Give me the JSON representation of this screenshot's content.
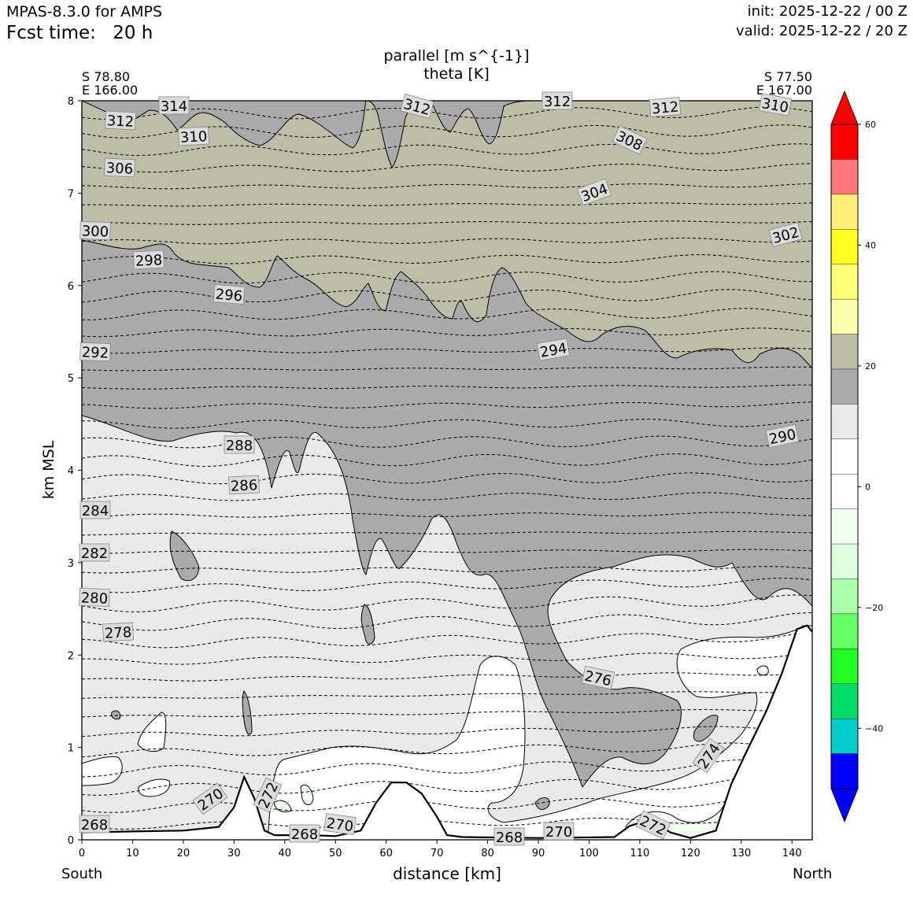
{
  "header": {
    "model": "MPAS-8.3.0 for AMPS",
    "fcst_label": "Fcst time:",
    "fcst_value": "20 h",
    "init": "init: 2025-12-22 / 00 Z",
    "valid": "valid: 2025-12-22 / 20 Z"
  },
  "chart_data": {
    "type": "contour",
    "title": "parallel [m s^{-1}]",
    "subtitle": "theta [K]",
    "xlabel": "distance [km]",
    "ylabel": "km MSL",
    "xlim": [
      0,
      144
    ],
    "ylim": [
      0,
      8
    ],
    "x_ticks": [
      0,
      10,
      20,
      30,
      40,
      50,
      60,
      70,
      80,
      90,
      100,
      110,
      120,
      130,
      140
    ],
    "y_ticks": [
      0,
      1,
      2,
      3,
      4,
      5,
      6,
      7,
      8
    ],
    "start_point": {
      "lat": "S 78.80",
      "lon": "E 166.00",
      "end_label": "South"
    },
    "end_point": {
      "lat": "S 77.50",
      "lon": "E 167.00",
      "end_label": "North"
    },
    "colorbar": {
      "min": -50,
      "max": 60,
      "step": 5,
      "tick_values": [
        60,
        40,
        20,
        0,
        -20,
        -40
      ],
      "tick_labels": [
        "60",
        "40",
        "20",
        "0",
        "−20",
        "−40"
      ],
      "colors": [
        "#0000ff",
        "#0000ff",
        "#00cccc",
        "#00dd66",
        "#22ff22",
        "#66ff66",
        "#aaffaa",
        "#ddffdd",
        "#f0fff0",
        "#ffffff",
        "#ffffff",
        "#eaeaea",
        "#aaaaaa",
        "#bdbda8",
        "#ffffaa",
        "#ffff77",
        "#ffff22",
        "#ffee77",
        "#ff7777",
        "#ff0000",
        "#ff0000"
      ]
    },
    "parallel_wind_bands": [
      {
        "level": "15-20",
        "color": "#aaaaaa",
        "region": "upper 2.3-6.5 km and top"
      },
      {
        "level": "20-25",
        "color": "#bdbda8",
        "region": "upper right 5-8 km"
      },
      {
        "level": "10-15",
        "color": "#eaeaea",
        "region": "lower left 0.5-4.5 km"
      },
      {
        "level": "0-10",
        "color": "#ffffff",
        "region": "near surface"
      },
      {
        "level": "-5-0",
        "color": "#f0fff0",
        "region": "small patches near surface"
      }
    ],
    "theta_contour_labels": [
      "314",
      "312",
      "312",
      "312",
      "312",
      "310",
      "310",
      "308",
      "306",
      "304",
      "302",
      "300",
      "298",
      "296",
      "294",
      "292",
      "290",
      "288",
      "286",
      "284",
      "282",
      "280",
      "278",
      "276",
      "274",
      "272",
      "272",
      "270",
      "270",
      "270",
      "268",
      "268",
      "268"
    ],
    "terrain_km": [
      [
        0,
        0.08
      ],
      [
        10,
        0.09
      ],
      [
        20,
        0.1
      ],
      [
        27,
        0.14
      ],
      [
        30,
        0.35
      ],
      [
        32,
        0.68
      ],
      [
        34,
        0.45
      ],
      [
        36,
        0.1
      ],
      [
        38,
        0.05
      ],
      [
        45,
        0.05
      ],
      [
        50,
        0.04
      ],
      [
        55,
        0.1
      ],
      [
        58,
        0.4
      ],
      [
        61,
        0.62
      ],
      [
        64,
        0.62
      ],
      [
        67,
        0.5
      ],
      [
        70,
        0.25
      ],
      [
        72,
        0.05
      ],
      [
        75,
        0.03
      ],
      [
        90,
        0.02
      ],
      [
        105,
        0.03
      ],
      [
        108,
        0.15
      ],
      [
        112,
        0.22
      ],
      [
        116,
        0.08
      ],
      [
        120,
        0.02
      ],
      [
        125,
        0.1
      ],
      [
        128,
        0.6
      ],
      [
        131,
        0.95
      ],
      [
        135,
        1.4
      ],
      [
        138,
        1.8
      ],
      [
        141,
        2.28
      ],
      [
        143,
        2.32
      ],
      [
        144,
        2.25
      ]
    ]
  }
}
